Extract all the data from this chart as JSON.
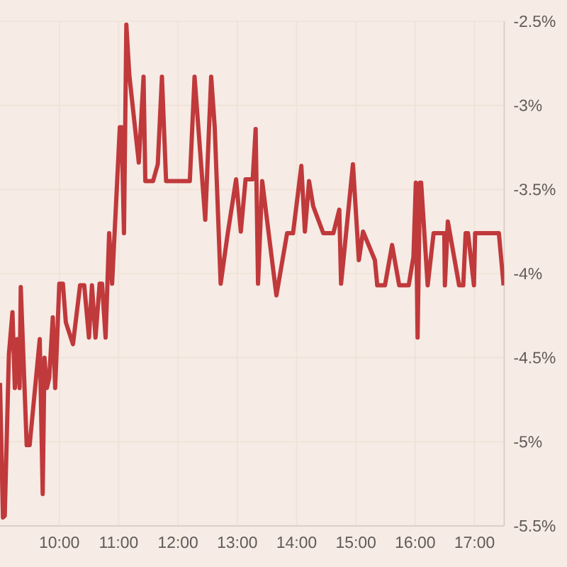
{
  "chart_data": {
    "type": "line",
    "x": [
      9.0,
      9.05,
      9.08,
      9.15,
      9.21,
      9.25,
      9.29,
      9.33,
      9.35,
      9.45,
      9.5,
      9.67,
      9.72,
      9.75,
      9.79,
      9.83,
      9.89,
      9.93,
      10.0,
      10.06,
      10.11,
      10.23,
      10.35,
      10.42,
      10.5,
      10.55,
      10.61,
      10.68,
      10.72,
      10.78,
      10.84,
      10.89,
      11.02,
      11.05,
      11.09,
      11.13,
      11.18,
      11.34,
      11.42,
      11.45,
      11.58,
      11.66,
      11.73,
      11.8,
      12.2,
      12.28,
      12.46,
      12.56,
      12.62,
      12.72,
      12.84,
      12.98,
      13.06,
      13.14,
      13.26,
      13.31,
      13.35,
      13.42,
      13.66,
      13.84,
      13.94,
      14.08,
      14.14,
      14.21,
      14.28,
      14.45,
      14.62,
      14.72,
      14.75,
      14.95,
      15.05,
      15.12,
      15.32,
      15.36,
      15.49,
      15.61,
      15.73,
      15.89,
      15.97,
      16.01,
      16.04,
      16.08,
      16.1,
      16.21,
      16.31,
      16.49,
      16.5,
      16.55,
      16.74,
      16.81,
      16.85,
      16.89,
      16.99,
      17.01,
      17.41,
      17.49
    ],
    "values": [
      -4.65,
      -5.45,
      -5.44,
      -4.48,
      -4.23,
      -4.68,
      -4.39,
      -4.68,
      -4.08,
      -5.02,
      -5.02,
      -4.39,
      -5.31,
      -4.5,
      -4.68,
      -4.62,
      -4.26,
      -4.68,
      -4.06,
      -4.06,
      -4.29,
      -4.42,
      -4.07,
      -4.07,
      -4.38,
      -4.07,
      -4.38,
      -4.06,
      -4.06,
      -4.38,
      -3.76,
      -4.06,
      -3.13,
      -3.13,
      -3.76,
      -2.52,
      -2.82,
      -3.34,
      -2.83,
      -3.45,
      -3.45,
      -3.35,
      -2.83,
      -3.45,
      -3.45,
      -2.83,
      -3.68,
      -2.83,
      -3.13,
      -4.06,
      -3.76,
      -3.44,
      -3.75,
      -3.44,
      -3.44,
      -3.14,
      -4.06,
      -3.45,
      -4.13,
      -3.76,
      -3.76,
      -3.36,
      -3.75,
      -3.45,
      -3.6,
      -3.76,
      -3.76,
      -3.62,
      -4.06,
      -3.35,
      -3.92,
      -3.75,
      -3.92,
      -4.07,
      -4.07,
      -3.83,
      -4.07,
      -4.07,
      -3.9,
      -3.46,
      -4.38,
      -3.46,
      -3.46,
      -4.07,
      -3.76,
      -3.76,
      -4.07,
      -3.69,
      -4.07,
      -4.07,
      -3.76,
      -3.76,
      -4.07,
      -3.76,
      -3.76,
      -4.07
    ],
    "color": "#c0393b",
    "line_style": "solid",
    "grid": true,
    "xlim": [
      9,
      17.5
    ],
    "xticks": [
      {
        "value": 10,
        "label": "10:00"
      },
      {
        "value": 11,
        "label": "11:00"
      },
      {
        "value": 12,
        "label": "12:00"
      },
      {
        "value": 13,
        "label": "13:00"
      },
      {
        "value": 14,
        "label": "14:00"
      },
      {
        "value": 15,
        "label": "15:00"
      },
      {
        "value": 16,
        "label": "16:00"
      },
      {
        "value": 17,
        "label": "17:00"
      }
    ],
    "ylim": [
      -5.5,
      -2.5
    ],
    "yticks": [
      {
        "value": -5.5,
        "label": "-5.5%"
      },
      {
        "value": -5,
        "label": "-5%"
      },
      {
        "value": -4.5,
        "label": "-4.5%"
      },
      {
        "value": -4,
        "label": "-4%"
      },
      {
        "value": -3.5,
        "label": "-3.5%"
      },
      {
        "value": -3,
        "label": "-3%"
      },
      {
        "value": -2.5,
        "label": "-2.5%"
      }
    ]
  }
}
